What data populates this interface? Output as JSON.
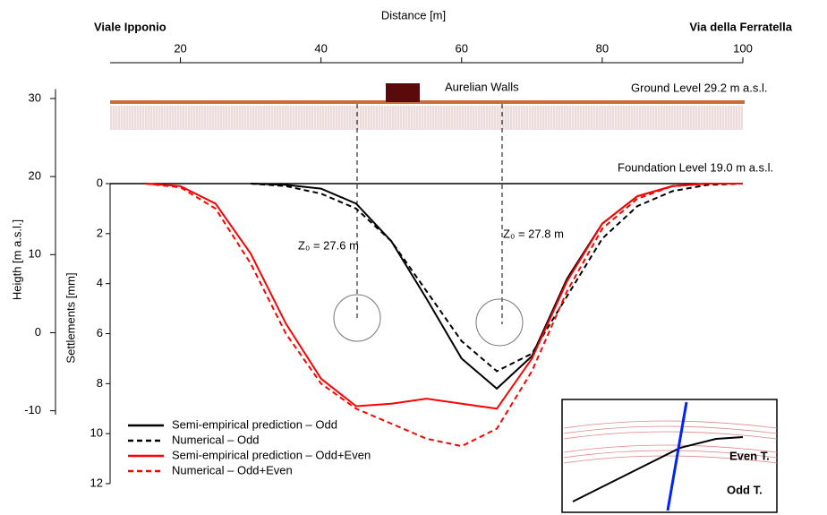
{
  "chart_data": {
    "type": "line",
    "x_label": "Distance [m]",
    "y_label": "Heigth [m a.s.l.]",
    "y2_label": "Settlements [mm]",
    "annotations": {
      "left_street": "Viale Ipponio",
      "right_street": "Via della Ferratella",
      "walls": "Aurelian Walls",
      "ground": "Ground Level  29.2 m a.s.l.",
      "foundation": "Foundation Level  19.0 m a.s.l.",
      "z_left": "Z₀ = 27.6 m",
      "z_right": "Z₀ = 27.8 m",
      "even": "Even T.",
      "odd": "Odd T."
    },
    "xlim": [
      10,
      100
    ],
    "xticks": [
      20,
      40,
      60,
      80,
      100
    ],
    "ylim": [
      -10.5,
      31.2
    ],
    "yticks": [
      30,
      20,
      10,
      0,
      -10
    ],
    "y2lim": [
      0,
      12
    ],
    "y2ticks": [
      0,
      2,
      4,
      6,
      8,
      10,
      12
    ],
    "x": [
      15,
      20,
      25,
      30,
      35,
      40,
      45,
      50,
      55,
      60,
      65,
      70,
      75,
      80,
      85,
      90,
      95,
      100
    ],
    "series": [
      {
        "name": "Semi-empirical prediction – Odd",
        "color": "#000000",
        "dash": false,
        "axis": "y2",
        "values": [
          null,
          null,
          null,
          0,
          0.05,
          0.2,
          0.8,
          2.3,
          4.6,
          7.0,
          8.2,
          6.9,
          3.8,
          1.6,
          0.5,
          0.1,
          0,
          0
        ]
      },
      {
        "name": "Numerical – Odd",
        "color": "#000000",
        "dash": true,
        "axis": "y2",
        "values": [
          null,
          null,
          null,
          0,
          0.1,
          0.4,
          1.0,
          2.3,
          4.3,
          6.3,
          7.5,
          6.8,
          4.5,
          2.2,
          0.9,
          0.3,
          0.05,
          0
        ]
      },
      {
        "name": "Semi-empirical prediction – Odd+Even",
        "color": "#ff0000",
        "dash": false,
        "axis": "y2",
        "values": [
          0,
          0.1,
          0.8,
          2.8,
          5.6,
          7.8,
          8.9,
          8.8,
          8.6,
          8.8,
          9.0,
          7.0,
          3.9,
          1.6,
          0.5,
          0.1,
          0,
          0
        ]
      },
      {
        "name": "Numerical – Odd+Even",
        "color": "#ff0000",
        "dash": true,
        "axis": "y2",
        "values": [
          0,
          0.15,
          1.0,
          3.2,
          6.0,
          8.0,
          9.0,
          9.6,
          10.2,
          10.5,
          9.8,
          7.5,
          4.3,
          1.8,
          0.6,
          0.1,
          0,
          0
        ]
      }
    ]
  }
}
